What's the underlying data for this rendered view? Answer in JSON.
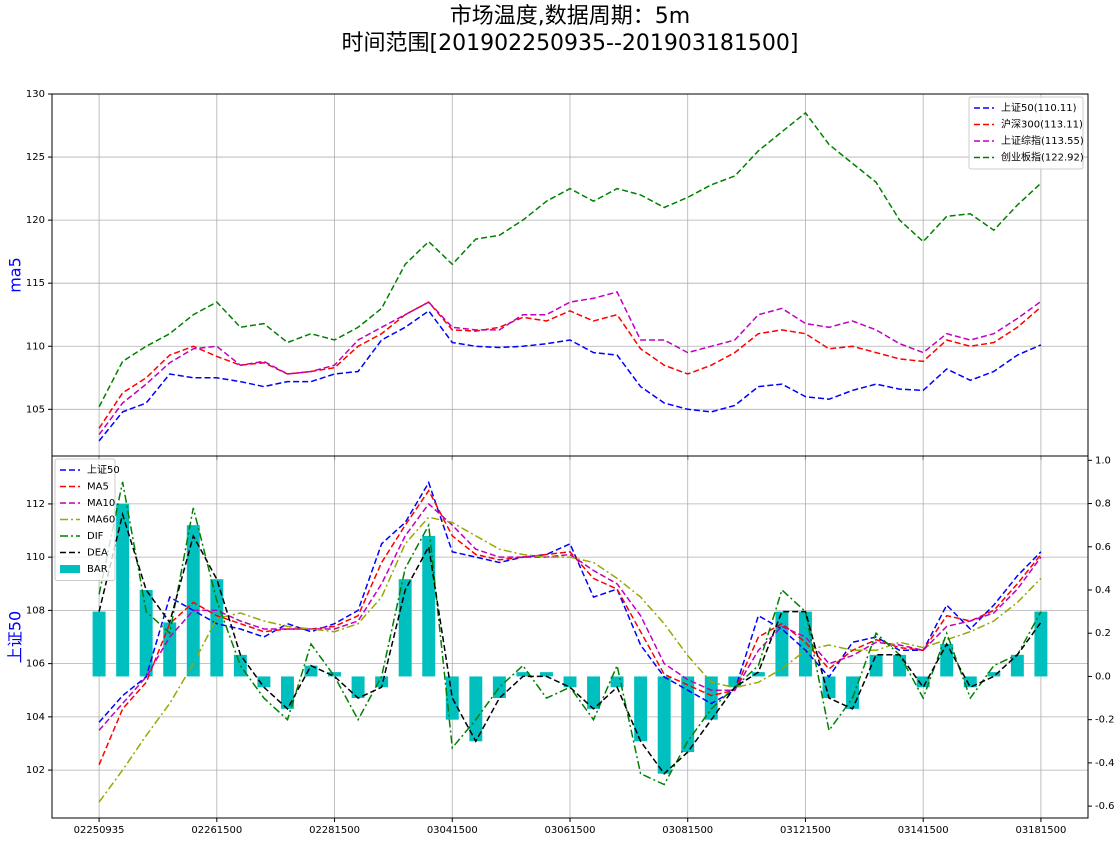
{
  "title": "市场温度,数据周期：5m",
  "subtitle": "时间范围[201902250935--201903181500]",
  "chart_data": [
    {
      "type": "line",
      "ylabel": "ma5",
      "ylim": [
        101.3,
        130
      ],
      "yticks": [
        105,
        110,
        115,
        120,
        125,
        130
      ],
      "grid": true,
      "legend": "upper right",
      "series": [
        {
          "name": "上证50(110.11)",
          "color": "#0000ff",
          "linestyle": "dashed",
          "values": [
            102.5,
            104.8,
            105.5,
            107.8,
            107.5,
            107.5,
            107.2,
            106.8,
            107.2,
            107.2,
            107.8,
            108,
            110.5,
            111.5,
            112.8,
            110.3,
            110,
            109.9,
            110,
            110.2,
            110.5,
            109.5,
            109.3,
            106.8,
            105.5,
            105,
            104.8,
            105.3,
            106.8,
            107,
            106,
            105.8,
            106.5,
            107,
            106.6,
            106.5,
            108.2,
            107.3,
            108,
            109.3,
            110.11
          ]
        },
        {
          "name": "沪深300(113.11)",
          "color": "#ff0000",
          "linestyle": "dashed",
          "values": [
            103.5,
            106.3,
            107.5,
            109.3,
            110,
            109.2,
            108.5,
            108.7,
            107.8,
            108,
            108.3,
            110,
            111,
            112.5,
            113.5,
            111.3,
            111.2,
            111.5,
            112.3,
            112,
            112.8,
            112,
            112.5,
            109.8,
            108.5,
            107.8,
            108.5,
            109.5,
            111,
            111.3,
            111,
            109.8,
            110,
            109.5,
            109,
            108.8,
            110.5,
            110,
            110.3,
            111.5,
            113.11
          ]
        },
        {
          "name": "上证综指(113.55)",
          "color": "#bf00bf",
          "linestyle": "dashed",
          "values": [
            103,
            105.5,
            107,
            108.7,
            109.8,
            110,
            108.5,
            108.8,
            107.8,
            108,
            108.5,
            110.5,
            111.5,
            112.5,
            113.5,
            111.5,
            111.3,
            111.3,
            112.5,
            112.5,
            113.5,
            113.8,
            114.3,
            110.5,
            110.5,
            109.5,
            110,
            110.5,
            112.5,
            113,
            111.8,
            111.5,
            112,
            111.3,
            110.2,
            109.5,
            111,
            110.5,
            111,
            112.2,
            113.55
          ]
        },
        {
          "name": "创业板指(122.92)",
          "color": "#008000",
          "linestyle": "dashed",
          "values": [
            105.2,
            108.8,
            110,
            111,
            112.5,
            113.5,
            111.5,
            111.8,
            110.3,
            111,
            110.5,
            111.5,
            113,
            116.5,
            118.3,
            116.5,
            118.5,
            118.8,
            120,
            121.5,
            122.5,
            121.5,
            122.5,
            122,
            121,
            121.8,
            122.8,
            123.5,
            125.5,
            127,
            128.5,
            126,
            124.5,
            123,
            120,
            118.3,
            120.3,
            120.5,
            119.2,
            121.2,
            122.92
          ]
        }
      ]
    },
    {
      "type": "line",
      "ylabel": "上证50",
      "ylim": [
        100.2,
        113.8
      ],
      "yticks": [
        102,
        104,
        106,
        108,
        110,
        112
      ],
      "y2lim": [
        -0.655,
        1.02
      ],
      "y2ticks": [
        {
          "value": -0.6,
          "label": "-0.6"
        },
        -0.4,
        -0.2,
        {
          "value": 0,
          "label": "0.0"
        },
        0.2,
        0.4,
        0.6,
        0.8,
        {
          "value": 1,
          "label": "1.0"
        }
      ],
      "xlim": [
        -2,
        42
      ],
      "xticks": [
        {
          "value": 0,
          "label": "02250935"
        },
        {
          "value": 5,
          "label": "02261500"
        },
        {
          "value": 10,
          "label": "02281500"
        },
        {
          "value": 15,
          "label": "03041500"
        },
        {
          "value": 20,
          "label": "03061500"
        },
        {
          "value": 25,
          "label": "03081500"
        },
        {
          "value": 30,
          "label": "03121500"
        },
        {
          "value": 35,
          "label": "03141500"
        },
        {
          "value": 40,
          "label": "03181500"
        }
      ],
      "grid": true,
      "legend": "upper left",
      "series": [
        {
          "name": "上证50",
          "color": "#0000ff",
          "linestyle": "dashed",
          "values": [
            103.8,
            104.8,
            105.5,
            108.5,
            108,
            107.5,
            107.3,
            107,
            107.5,
            107.2,
            107.5,
            108,
            110.5,
            111.3,
            112.8,
            110.2,
            110,
            109.8,
            110,
            110.1,
            110.5,
            108.5,
            108.8,
            106.7,
            105.5,
            105,
            104.5,
            105,
            107.8,
            107.3,
            106.5,
            105.5,
            106.8,
            107,
            106.5,
            106.5,
            108.2,
            107.3,
            108.2,
            109.3,
            110.2
          ]
        },
        {
          "name": "MA5",
          "color": "#ff0000",
          "linestyle": "dashed",
          "values": [
            102.2,
            104.3,
            105.3,
            107.5,
            108.3,
            107.8,
            107.5,
            107.2,
            107.3,
            107.3,
            107.4,
            107.8,
            109.8,
            111.2,
            112.5,
            110.8,
            110.1,
            109.9,
            110,
            110.1,
            110.2,
            109.2,
            108.8,
            107.2,
            105.6,
            105.2,
            104.8,
            105,
            107,
            107.5,
            106.8,
            105.8,
            106.5,
            106.9,
            106.6,
            106.5,
            107.8,
            107.6,
            108,
            109,
            110.1
          ]
        },
        {
          "name": "MA10",
          "color": "#bf00bf",
          "linestyle": "dashed",
          "values": [
            103.5,
            104.5,
            105.5,
            107,
            108,
            108,
            107.6,
            107.3,
            107.3,
            107.3,
            107.3,
            107.6,
            109,
            110.8,
            112,
            111.2,
            110.3,
            110,
            110,
            110,
            110.1,
            109.5,
            109,
            107.8,
            106,
            105.4,
            105,
            105,
            106.5,
            107.4,
            107,
            106,
            106.3,
            106.8,
            106.7,
            106.5,
            107.4,
            107.6,
            107.9,
            108.8,
            110
          ]
        },
        {
          "name": "MA60",
          "color": "#9aa800",
          "linestyle": "dashdot",
          "values": [
            100.8,
            102,
            103.3,
            104.5,
            106,
            107.7,
            107.9,
            107.6,
            107.4,
            107.3,
            107.2,
            107.5,
            108.5,
            110.5,
            111.5,
            111.3,
            110.8,
            110.3,
            110.1,
            110,
            110,
            109.8,
            109.2,
            108.5,
            107.5,
            106.3,
            105.3,
            105.1,
            105.3,
            105.8,
            106.5,
            106.7,
            106.5,
            106.5,
            106.8,
            106.6,
            106.9,
            107.2,
            107.6,
            108.3,
            109.2
          ]
        },
        {
          "name": "DIF",
          "color": "#008000",
          "linestyle": "dashdot",
          "axis": "y2",
          "values": [
            0.38,
            0.9,
            0.3,
            0.2,
            0.78,
            0.35,
            0.05,
            -0.1,
            -0.2,
            0.15,
            0,
            -0.2,
            0,
            0.5,
            0.7,
            -0.33,
            -0.2,
            -0.05,
            0.05,
            -0.1,
            -0.05,
            -0.2,
            0.05,
            -0.45,
            -0.5,
            -0.3,
            -0.15,
            -0.05,
            0.05,
            0.4,
            0.3,
            -0.25,
            -0.1,
            0.2,
            0.1,
            -0.1,
            0.2,
            -0.1,
            0.05,
            0.1,
            0.3
          ]
        },
        {
          "name": "DEA",
          "color": "#000000",
          "linestyle": "dashed",
          "axis": "y2",
          "values": [
            0.3,
            0.75,
            0.4,
            0.25,
            0.65,
            0.45,
            0.1,
            -0.05,
            -0.15,
            0.05,
            0,
            -0.1,
            -0.05,
            0.4,
            0.6,
            -0.1,
            -0.3,
            -0.1,
            0,
            0,
            -0.05,
            -0.15,
            -0.05,
            -0.3,
            -0.45,
            -0.35,
            -0.2,
            -0.05,
            0.02,
            0.3,
            0.3,
            -0.1,
            -0.15,
            0.1,
            0.1,
            -0.05,
            0.15,
            -0.05,
            0,
            0.1,
            0.25
          ]
        },
        {
          "name": "BAR",
          "color": "#00bfbf",
          "kind": "bar",
          "axis": "y2",
          "values": [
            0.3,
            0.8,
            0.4,
            0.25,
            0.7,
            0.45,
            0.1,
            -0.05,
            -0.15,
            0.05,
            0.02,
            -0.1,
            -0.05,
            0.45,
            0.65,
            -0.2,
            -0.3,
            -0.1,
            0.02,
            0.02,
            -0.05,
            -0.15,
            -0.05,
            -0.3,
            -0.45,
            -0.35,
            -0.2,
            -0.05,
            0.02,
            0.3,
            0.3,
            -0.1,
            -0.15,
            0.1,
            0.1,
            -0.05,
            0.15,
            -0.05,
            0.02,
            0.1,
            0.3
          ]
        }
      ]
    }
  ]
}
